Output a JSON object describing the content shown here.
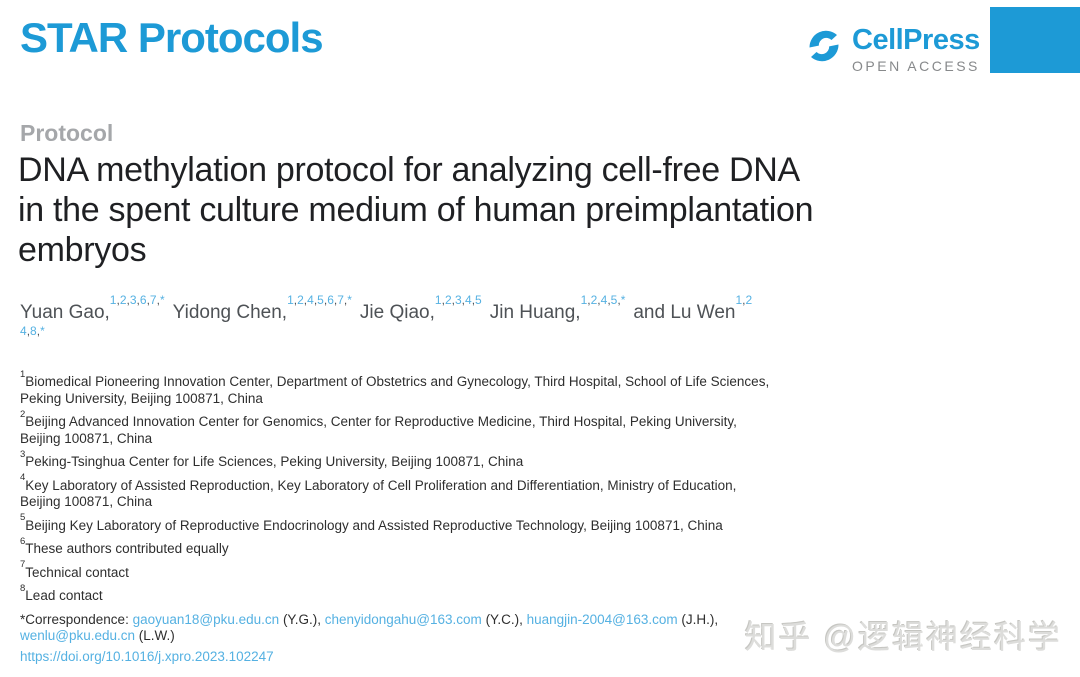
{
  "page": {
    "brand_blue": "#1d9ad6",
    "link_blue": "#55b1e2",
    "open_access_gray": "#87898b"
  },
  "header": {
    "journal_logo": "STAR Protocols",
    "publisher_logo": "CellPress",
    "open_access_label": "OPEN ACCESS"
  },
  "article": {
    "kicker": "Protocol",
    "title_line1": "DNA methylation protocol for analyzing cell-free DNA",
    "title_line2": "in the spent culture medium of human preimplantation",
    "title_line3": "embryos",
    "authors": [
      {
        "name": "Yuan Gao,",
        "sup": "1,2,3,6,7,*"
      },
      {
        "name": "Yidong Chen,",
        "sup": "1,2,4,5,6,7,*"
      },
      {
        "name": "Jie Qiao,",
        "sup": "1,2,3,4,5"
      },
      {
        "name": "Jin Huang,",
        "sup": "1,2,4,5,*"
      },
      {
        "name": "and Lu Wen",
        "sup": "1,2"
      }
    ],
    "authors_overflow_sup": "4,8,*",
    "affiliations": [
      {
        "sup": "1",
        "text": "Biomedical Pioneering Innovation Center, Department of Obstetrics and Gynecology, Third Hospital, School of Life Sciences, Peking University, Beijing 100871, China"
      },
      {
        "sup": "2",
        "text": "Beijing Advanced Innovation Center for Genomics, Center for Reproductive Medicine, Third Hospital, Peking University, Beijing 100871, China"
      },
      {
        "sup": "3",
        "text": "Peking-Tsinghua Center for Life Sciences, Peking University, Beijing 100871, China"
      },
      {
        "sup": "4",
        "text": "Key Laboratory of Assisted Reproduction, Key Laboratory of Cell Proliferation and Differentiation, Ministry of Education, Beijing 100871, China"
      },
      {
        "sup": "5",
        "text": "Beijing Key Laboratory of Reproductive Endocrinology and Assisted Reproductive Technology, Beijing 100871, China"
      },
      {
        "sup": "6",
        "text": "These authors contributed equally"
      },
      {
        "sup": "7",
        "text": "Technical contact"
      },
      {
        "sup": "8",
        "text": "Lead contact"
      }
    ],
    "correspondence": {
      "label": "*Correspondence:",
      "contacts": [
        {
          "email": "gaoyuan18@pku.edu.cn",
          "suffix": "(Y.G.),"
        },
        {
          "email": "chenyidongahu@163.com",
          "suffix": "(Y.C.),"
        },
        {
          "email": "huangjin-2004@163.com",
          "suffix": "(J.H.),"
        },
        {
          "email": "wenlu@pku.edu.cn",
          "suffix": "(L.W.)"
        }
      ]
    },
    "doi": "https://doi.org/10.1016/j.xpro.2023.102247"
  },
  "watermark": "知乎 @逻辑神经科学"
}
